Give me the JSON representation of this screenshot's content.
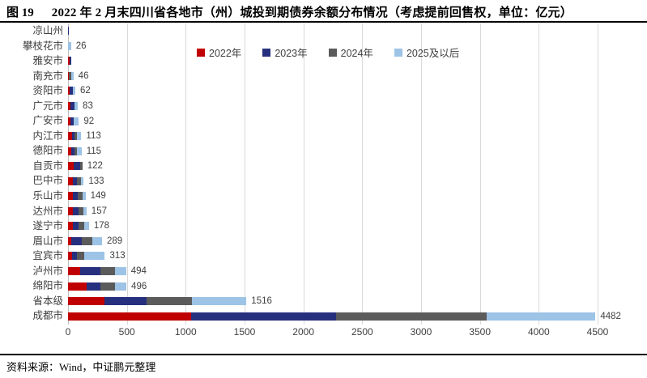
{
  "title": {
    "figure_no": "图 19",
    "text": "2022 年 2 月末四川省各地市（州）城投到期债券余额分布情况（考虑提前回售权，单位：亿元）"
  },
  "footer": {
    "source": "资料来源：Wind，中证鹏元整理"
  },
  "chart_data": {
    "type": "bar",
    "orientation": "horizontal",
    "stacked": true,
    "unit": "亿元",
    "legend_position": "top",
    "grid": true,
    "gridline_color": "#D9D9D9",
    "label_color": "#404040",
    "xlim": [
      0,
      4750
    ],
    "x_ticks": [
      0,
      500,
      1000,
      1500,
      2000,
      2500,
      3000,
      3500,
      4000,
      4500
    ],
    "categories": [
      "凉山州",
      "攀枝花市",
      "雅安市",
      "南充市",
      "资阳市",
      "广元市",
      "广安市",
      "内江市",
      "德阳市",
      "自贡市",
      "巴中市",
      "乐山市",
      "达州市",
      "遂宁市",
      "眉山市",
      "宜宾市",
      "泸州市",
      "绵阳市",
      "省本级",
      "成都市"
    ],
    "totals": [
      8,
      26,
      30,
      46,
      62,
      83,
      92,
      113,
      115,
      122,
      133,
      149,
      157,
      178,
      289,
      313,
      494,
      496,
      1516,
      4482
    ],
    "value_labels": [
      "",
      "26",
      "",
      "46",
      "62",
      "83",
      "92",
      "113",
      "115",
      "122",
      "133",
      "149",
      "157",
      "178",
      "289",
      "313",
      "494",
      "496",
      "1516",
      "4482"
    ],
    "series": [
      {
        "name": "2022年",
        "color": "#C00000",
        "values": [
          0,
          0,
          16,
          10,
          14,
          21,
          20,
          34,
          28,
          48,
          41,
          41,
          41,
          41,
          27,
          34,
          103,
          158,
          310,
          1046
        ]
      },
      {
        "name": "2023年",
        "color": "#27307E",
        "values": [
          8,
          0,
          14,
          0,
          24,
          34,
          30,
          21,
          28,
          53,
          34,
          41,
          48,
          48,
          90,
          41,
          172,
          117,
          360,
          1232
        ]
      },
      {
        "name": "2024年",
        "color": "#5B5B5B",
        "values": [
          0,
          0,
          0,
          16,
          0,
          0,
          0,
          24,
          21,
          21,
          38,
          40,
          41,
          48,
          90,
          62,
          123,
          125,
          385,
          1282
        ]
      },
      {
        "name": "2025及以后",
        "color": "#9DC3E6",
        "values": [
          0,
          26,
          0,
          20,
          24,
          28,
          42,
          34,
          38,
          0,
          20,
          27,
          27,
          41,
          82,
          176,
          96,
          96,
          461,
          922
        ]
      }
    ]
  }
}
